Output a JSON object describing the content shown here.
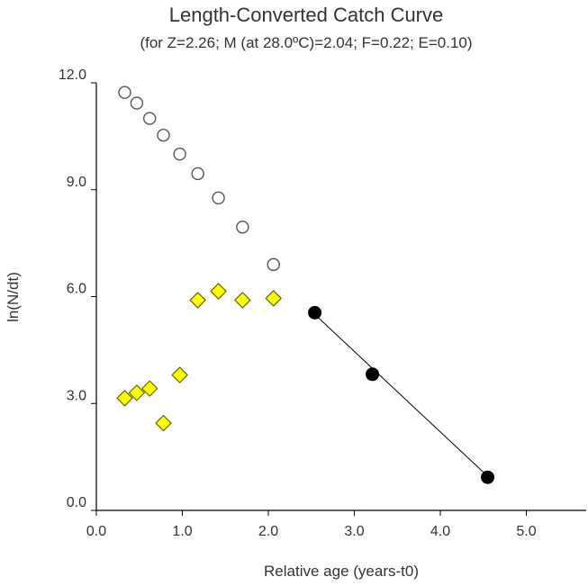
{
  "chart_data": {
    "type": "scatter",
    "title": "Length-Converted Catch Curve",
    "subtitle": "(for Z=2.26; M (at 28.0ºC)=2.04; F=0.22; E=0.10)",
    "xlabel": "Relative age (years-t0)",
    "ylabel": "ln(N/dt)",
    "xlim": [
      0,
      5.7
    ],
    "ylim": [
      0,
      12
    ],
    "x_ticks": [
      "0.0",
      "1.0",
      "2.0",
      "3.0",
      "4.0",
      "5.0"
    ],
    "y_ticks": [
      "0.0",
      "3.0",
      "6.0",
      "9.0",
      "12.0"
    ],
    "grid": false,
    "series": [
      {
        "marker": "open-circle",
        "x": [
          0.33,
          0.47,
          0.62,
          0.78,
          0.97,
          1.18,
          1.42,
          1.7,
          2.06
        ],
        "y": [
          11.73,
          11.43,
          11.0,
          10.53,
          10.0,
          9.45,
          8.77,
          7.95,
          6.9
        ]
      },
      {
        "marker": "yellow-diamond",
        "color": "#ffff00",
        "x": [
          0.33,
          0.47,
          0.62,
          0.78,
          0.97,
          1.18,
          1.42,
          1.7,
          2.06
        ],
        "y": [
          3.15,
          3.3,
          3.42,
          2.45,
          3.8,
          5.9,
          6.15,
          5.9,
          5.95
        ]
      },
      {
        "marker": "filled-circle",
        "color": "#000000",
        "x": [
          2.54,
          3.21,
          4.55
        ],
        "y": [
          5.55,
          3.82,
          0.93
        ]
      }
    ],
    "regression_line": {
      "x": [
        2.54,
        4.55
      ],
      "y": [
        5.5,
        0.96
      ]
    }
  }
}
